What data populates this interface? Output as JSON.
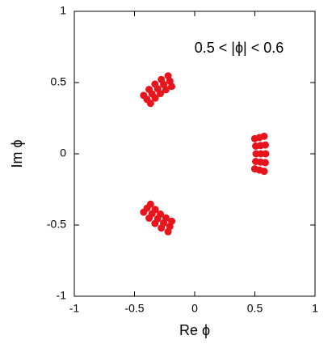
{
  "chart_data": {
    "type": "scatter",
    "annotation": "0.5 < |ϕ| < 0.6",
    "x_label": "Re ϕ",
    "y_label": "Im ϕ",
    "color": "#e8141c",
    "x": [
      0.499,
      0.507,
      0.51,
      0.507,
      0.499,
      0.538,
      0.547,
      0.55,
      0.547,
      0.538,
      0.577,
      0.587,
      0.59,
      0.587,
      0.577,
      -0.191,
      -0.239,
      -0.285,
      -0.328,
      -0.367,
      -0.206,
      -0.258,
      -0.307,
      -0.354,
      -0.396,
      -0.221,
      -0.277,
      -0.33,
      -0.379,
      -0.424,
      -0.191,
      -0.239,
      -0.285,
      -0.328,
      -0.367,
      -0.206,
      -0.258,
      -0.307,
      -0.354,
      -0.396,
      -0.221,
      -0.277,
      -0.33,
      -0.379,
      -0.424
    ],
    "values": [
      -0.106,
      -0.054,
      0,
      0.054,
      0.106,
      -0.114,
      -0.058,
      0,
      0.058,
      0.114,
      -0.123,
      -0.062,
      0,
      0.062,
      0.123,
      0.473,
      0.45,
      0.423,
      0.391,
      0.354,
      0.51,
      0.486,
      0.456,
      0.421,
      0.382,
      0.547,
      0.521,
      0.489,
      0.452,
      0.41,
      -0.473,
      -0.45,
      -0.423,
      -0.391,
      -0.354,
      -0.51,
      -0.486,
      -0.456,
      -0.421,
      -0.382,
      -0.547,
      -0.521,
      -0.489,
      -0.452,
      -0.41
    ],
    "xlim": [
      -1,
      1
    ],
    "ylim": [
      -1,
      1
    ],
    "xticks": [
      -1,
      -0.5,
      0,
      0.5,
      1
    ],
    "yticks": [
      -1,
      -0.5,
      0,
      0.5,
      1
    ]
  }
}
